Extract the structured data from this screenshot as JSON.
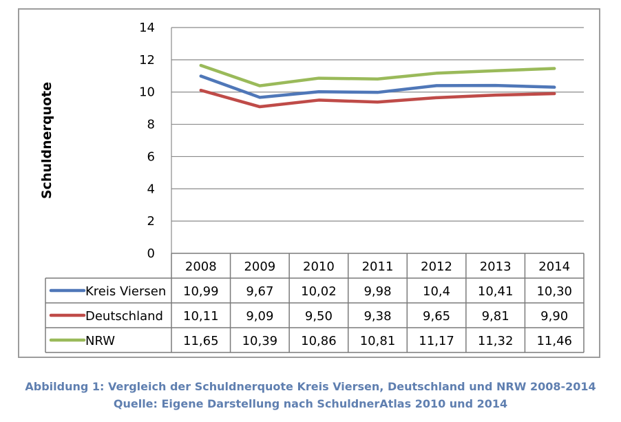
{
  "chart_data": {
    "type": "line",
    "categories": [
      "2008",
      "2009",
      "2010",
      "2011",
      "2012",
      "2013",
      "2014"
    ],
    "ylabel": "Schuldnerquote",
    "ylim": [
      0,
      14
    ],
    "yticks": [
      "0",
      "2",
      "4",
      "6",
      "8",
      "10",
      "12",
      "14"
    ],
    "grid": true,
    "legend": "data-table",
    "series": [
      {
        "name": "Kreis Viersen",
        "color": "#4f77b8",
        "values": [
          10.99,
          9.67,
          10.02,
          9.98,
          10.4,
          10.41,
          10.3
        ],
        "labels": [
          "10,99",
          "9,67",
          "10,02",
          "9,98",
          "10,4",
          "10,41",
          "10,30"
        ]
      },
      {
        "name": "Deutschland",
        "color": "#bf4b48",
        "values": [
          10.11,
          9.09,
          9.5,
          9.38,
          9.65,
          9.81,
          9.9
        ],
        "labels": [
          "10,11",
          "9,09",
          "9,50",
          "9,38",
          "9,65",
          "9,81",
          "9,90"
        ]
      },
      {
        "name": "NRW",
        "color": "#9aba5a",
        "values": [
          11.65,
          10.39,
          10.86,
          10.81,
          11.17,
          11.32,
          11.46
        ],
        "labels": [
          "11,65",
          "10,39",
          "10,86",
          "10,81",
          "11,17",
          "11,32",
          "11,46"
        ]
      }
    ]
  },
  "caption": {
    "line1": "Abbildung 1: Vergleich der Schuldnerquote Kreis Viersen, Deutschland und NRW 2008-2014",
    "line2": "Quelle: Eigene Darstellung nach SchuldnerAtlas 2010 und 2014"
  }
}
